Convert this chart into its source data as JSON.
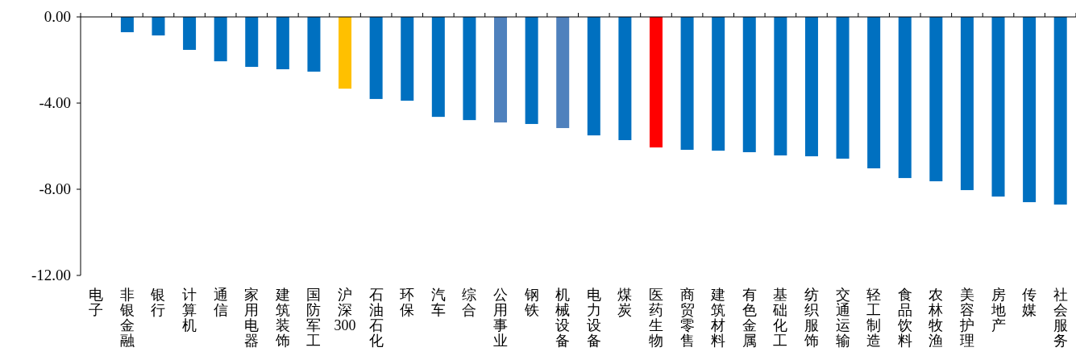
{
  "chart_data": {
    "type": "bar",
    "categories": [
      "电子",
      "非银金融",
      "银行",
      "计算机",
      "通信",
      "家用电器",
      "建筑装饰",
      "国防军工",
      "沪深300",
      "石油石化",
      "环保",
      "汽车",
      "综合",
      "公用事业",
      "钢铁",
      "机械设备",
      "电力设备",
      "煤炭",
      "医药生物",
      "商贸零售",
      "建筑材料",
      "有色金属",
      "基础化工",
      "纺织服饰",
      "交通运输",
      "轻工制造",
      "食品饮料",
      "农林牧渔",
      "美容护理",
      "房地产",
      "传媒",
      "社会服务"
    ],
    "values": [
      null,
      -0.71,
      -0.86,
      -1.53,
      -2.06,
      -2.32,
      -2.43,
      -2.54,
      -3.33,
      -3.81,
      -3.89,
      -4.64,
      -4.79,
      -4.9,
      -4.97,
      -5.16,
      -5.5,
      -5.72,
      -6.06,
      -6.17,
      -6.21,
      -6.28,
      -6.43,
      -6.47,
      -6.58,
      -7.03,
      -7.48,
      -7.63,
      -8.04,
      -8.34,
      -8.6,
      -8.71
    ],
    "colors": [
      null,
      "#0070c0",
      "#0070c0",
      "#0070c0",
      "#0070c0",
      "#0070c0",
      "#0070c0",
      "#0070c0",
      "#ffc000",
      "#0070c0",
      "#0070c0",
      "#0070c0",
      "#0070c0",
      "#4f81bd",
      "#0070c0",
      "#4f81bd",
      "#0070c0",
      "#0070c0",
      "#ff0000",
      "#0070c0",
      "#0070c0",
      "#0070c0",
      "#0070c0",
      "#0070c0",
      "#0070c0",
      "#0070c0",
      "#0070c0",
      "#0070c0",
      "#0070c0",
      "#0070c0",
      "#0070c0",
      "#0070c0"
    ],
    "ylim": [
      -12,
      0
    ],
    "yticks": [
      {
        "value": 0,
        "label": "0.00"
      },
      {
        "value": -4,
        "label": "-4.00"
      },
      {
        "value": -8,
        "label": "-8.00"
      },
      {
        "value": -12,
        "label": "-12.00"
      }
    ],
    "grid": false
  }
}
